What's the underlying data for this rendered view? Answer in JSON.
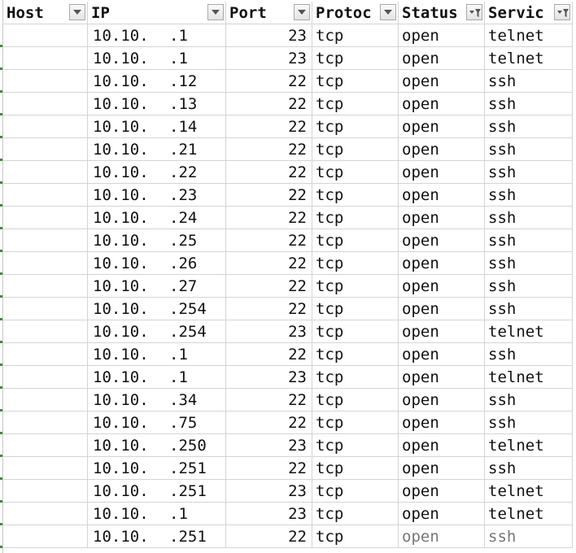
{
  "headers": [
    {
      "label": "Host",
      "filter": "dropdown"
    },
    {
      "label": "IP",
      "filter": "dropdown"
    },
    {
      "label": "Port",
      "filter": "dropdown"
    },
    {
      "label": "Protoc",
      "filter": "dropdown"
    },
    {
      "label": "Status",
      "filter": "filtered"
    },
    {
      "label": "Servic",
      "filter": "filtered"
    }
  ],
  "rows": [
    {
      "host": "",
      "ip_prefix": "10.10.",
      "ip_suffix": ".1",
      "port": "23",
      "protocol": "tcp",
      "status": "open",
      "service": "telnet"
    },
    {
      "host": "",
      "ip_prefix": "10.10.",
      "ip_suffix": ".1",
      "port": "23",
      "protocol": "tcp",
      "status": "open",
      "service": "telnet"
    },
    {
      "host": "",
      "ip_prefix": "10.10.",
      "ip_suffix": ".12",
      "port": "22",
      "protocol": "tcp",
      "status": "open",
      "service": "ssh"
    },
    {
      "host": "",
      "ip_prefix": "10.10.",
      "ip_suffix": ".13",
      "port": "22",
      "protocol": "tcp",
      "status": "open",
      "service": "ssh"
    },
    {
      "host": "",
      "ip_prefix": "10.10.",
      "ip_suffix": ".14",
      "port": "22",
      "protocol": "tcp",
      "status": "open",
      "service": "ssh"
    },
    {
      "host": "",
      "ip_prefix": "10.10.",
      "ip_suffix": ".21",
      "port": "22",
      "protocol": "tcp",
      "status": "open",
      "service": "ssh"
    },
    {
      "host": "",
      "ip_prefix": "10.10.",
      "ip_suffix": ".22",
      "port": "22",
      "protocol": "tcp",
      "status": "open",
      "service": "ssh"
    },
    {
      "host": "",
      "ip_prefix": "10.10.",
      "ip_suffix": ".23",
      "port": "22",
      "protocol": "tcp",
      "status": "open",
      "service": "ssh"
    },
    {
      "host": "",
      "ip_prefix": "10.10.",
      "ip_suffix": ".24",
      "port": "22",
      "protocol": "tcp",
      "status": "open",
      "service": "ssh"
    },
    {
      "host": "",
      "ip_prefix": "10.10.",
      "ip_suffix": ".25",
      "port": "22",
      "protocol": "tcp",
      "status": "open",
      "service": "ssh"
    },
    {
      "host": "",
      "ip_prefix": "10.10.",
      "ip_suffix": ".26",
      "port": "22",
      "protocol": "tcp",
      "status": "open",
      "service": "ssh"
    },
    {
      "host": "",
      "ip_prefix": "10.10.",
      "ip_suffix": ".27",
      "port": "22",
      "protocol": "tcp",
      "status": "open",
      "service": "ssh"
    },
    {
      "host": "",
      "ip_prefix": "10.10.",
      "ip_suffix": ".254",
      "port": "22",
      "protocol": "tcp",
      "status": "open",
      "service": "ssh"
    },
    {
      "host": "",
      "ip_prefix": "10.10.",
      "ip_suffix": ".254",
      "port": "23",
      "protocol": "tcp",
      "status": "open",
      "service": "telnet"
    },
    {
      "host": "",
      "ip_prefix": "10.10.",
      "ip_suffix": ".1",
      "port": "22",
      "protocol": "tcp",
      "status": "open",
      "service": "ssh"
    },
    {
      "host": "",
      "ip_prefix": "10.10.",
      "ip_suffix": ".1",
      "port": "23",
      "protocol": "tcp",
      "status": "open",
      "service": "telnet"
    },
    {
      "host": "",
      "ip_prefix": "10.10.",
      "ip_suffix": ".34",
      "port": "22",
      "protocol": "tcp",
      "status": "open",
      "service": "ssh"
    },
    {
      "host": "",
      "ip_prefix": "10.10.",
      "ip_suffix": ".75",
      "port": "22",
      "protocol": "tcp",
      "status": "open",
      "service": "ssh"
    },
    {
      "host": "",
      "ip_prefix": "10.10.",
      "ip_suffix": ".250",
      "port": "23",
      "protocol": "tcp",
      "status": "open",
      "service": "telnet"
    },
    {
      "host": "",
      "ip_prefix": "10.10.",
      "ip_suffix": ".251",
      "port": "22",
      "protocol": "tcp",
      "status": "open",
      "service": "ssh"
    },
    {
      "host": "",
      "ip_prefix": "10.10.",
      "ip_suffix": ".251",
      "port": "23",
      "protocol": "tcp",
      "status": "open",
      "service": "telnet"
    },
    {
      "host": "",
      "ip_prefix": "10.10.",
      "ip_suffix": ".1",
      "port": "23",
      "protocol": "tcp",
      "status": "open",
      "service": "telnet"
    },
    {
      "host": "",
      "ip_prefix": "10.10.",
      "ip_suffix": ".251",
      "port": "22",
      "protocol": "tcp",
      "status": "open",
      "service": "ssh"
    }
  ],
  "colors": {
    "grid": "#d4d4d4",
    "row_marker": "#3a8a3a"
  }
}
